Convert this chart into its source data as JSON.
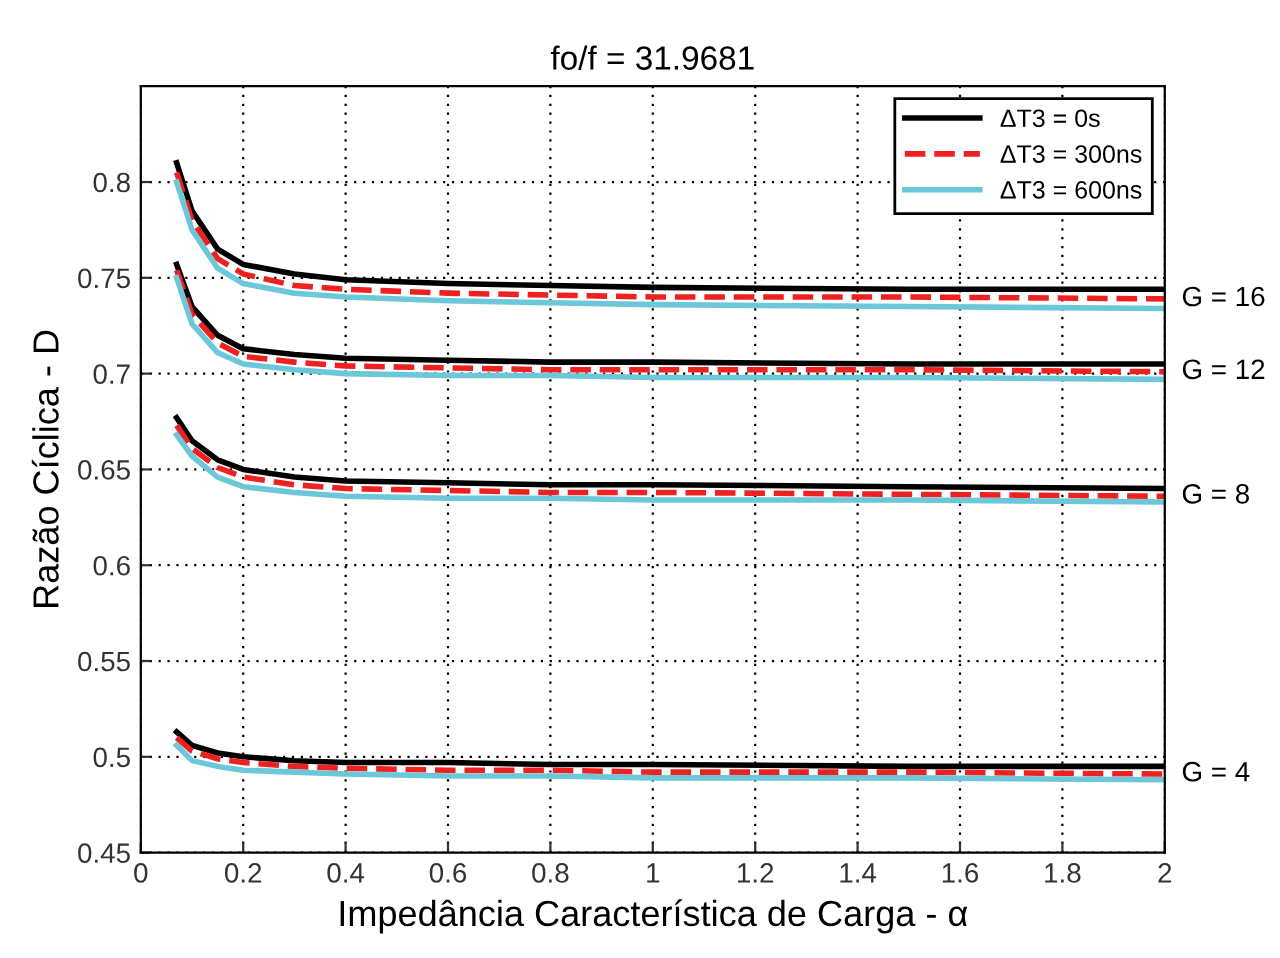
{
  "chart_data": {
    "type": "line",
    "title": "fo/f = 31.9681",
    "xlabel": "Impedância Característica de Carga - α",
    "ylabel": "Razão Cíclica - D",
    "x": [
      0.07,
      0.1,
      0.15,
      0.2,
      0.3,
      0.4,
      0.6,
      0.8,
      1.0,
      1.5,
      2.0
    ],
    "xlim": [
      0,
      2
    ],
    "xticks": [
      0,
      0.2,
      0.4,
      0.6,
      0.8,
      1,
      1.2,
      1.4,
      1.6,
      1.8,
      2
    ],
    "ylim": [
      0.45,
      0.85
    ],
    "yticks": [
      0.45,
      0.5,
      0.55,
      0.6,
      0.65,
      0.7,
      0.75,
      0.8
    ],
    "grid": true,
    "legend": "top right",
    "marker": "none",
    "series": [
      {
        "name": "ΔT3 = 0s",
        "color": "#000000",
        "line_style": "solid",
        "values": [
          0.81,
          0.785,
          0.765,
          0.757,
          0.752,
          0.749,
          0.747,
          0.746,
          0.745,
          0.744,
          0.744
        ]
      },
      {
        "name": "ΔT3 = 300ns",
        "color": "#ee2020",
        "line_style": "dashed",
        "values": [
          0.805,
          0.78,
          0.76,
          0.752,
          0.746,
          0.744,
          0.742,
          0.741,
          0.74,
          0.74,
          0.739
        ]
      },
      {
        "name": "ΔT3 = 600ns",
        "color": "#6cc8d8",
        "line_style": "solid",
        "values": [
          0.8,
          0.775,
          0.755,
          0.747,
          0.742,
          0.74,
          0.738,
          0.737,
          0.736,
          0.735,
          0.734
        ]
      },
      {
        "color": "#000000",
        "line_style": "solid",
        "values": [
          0.757,
          0.735,
          0.72,
          0.713,
          0.71,
          0.708,
          0.707,
          0.706,
          0.706,
          0.705,
          0.705
        ]
      },
      {
        "color": "#ee2020",
        "line_style": "dashed",
        "values": [
          0.754,
          0.731,
          0.716,
          0.709,
          0.706,
          0.704,
          0.703,
          0.702,
          0.702,
          0.702,
          0.701
        ]
      },
      {
        "color": "#6cc8d8",
        "line_style": "solid",
        "values": [
          0.75,
          0.726,
          0.711,
          0.705,
          0.702,
          0.7,
          0.699,
          0.699,
          0.698,
          0.698,
          0.697
        ]
      },
      {
        "color": "#000000",
        "line_style": "solid",
        "values": [
          0.677,
          0.665,
          0.655,
          0.65,
          0.646,
          0.644,
          0.643,
          0.642,
          0.642,
          0.641,
          0.64
        ]
      },
      {
        "color": "#ee2020",
        "line_style": "dashed",
        "values": [
          0.673,
          0.661,
          0.651,
          0.646,
          0.642,
          0.64,
          0.639,
          0.638,
          0.638,
          0.637,
          0.636
        ]
      },
      {
        "color": "#6cc8d8",
        "line_style": "solid",
        "values": [
          0.668,
          0.657,
          0.646,
          0.641,
          0.638,
          0.636,
          0.635,
          0.635,
          0.634,
          0.634,
          0.633
        ]
      },
      {
        "color": "#000000",
        "line_style": "solid",
        "values": [
          0.513,
          0.506,
          0.502,
          0.5,
          0.498,
          0.497,
          0.497,
          0.496,
          0.496,
          0.495,
          0.495
        ]
      },
      {
        "color": "#ee2020",
        "line_style": "dashed",
        "values": [
          0.51,
          0.503,
          0.499,
          0.497,
          0.495,
          0.494,
          0.493,
          0.493,
          0.492,
          0.492,
          0.491
        ]
      },
      {
        "color": "#6cc8d8",
        "line_style": "solid",
        "values": [
          0.506,
          0.498,
          0.495,
          0.493,
          0.492,
          0.491,
          0.49,
          0.49,
          0.489,
          0.489,
          0.488
        ]
      }
    ],
    "annotations": [
      "G = 16",
      "G = 12",
      "G = 8",
      "G = 4"
    ]
  }
}
